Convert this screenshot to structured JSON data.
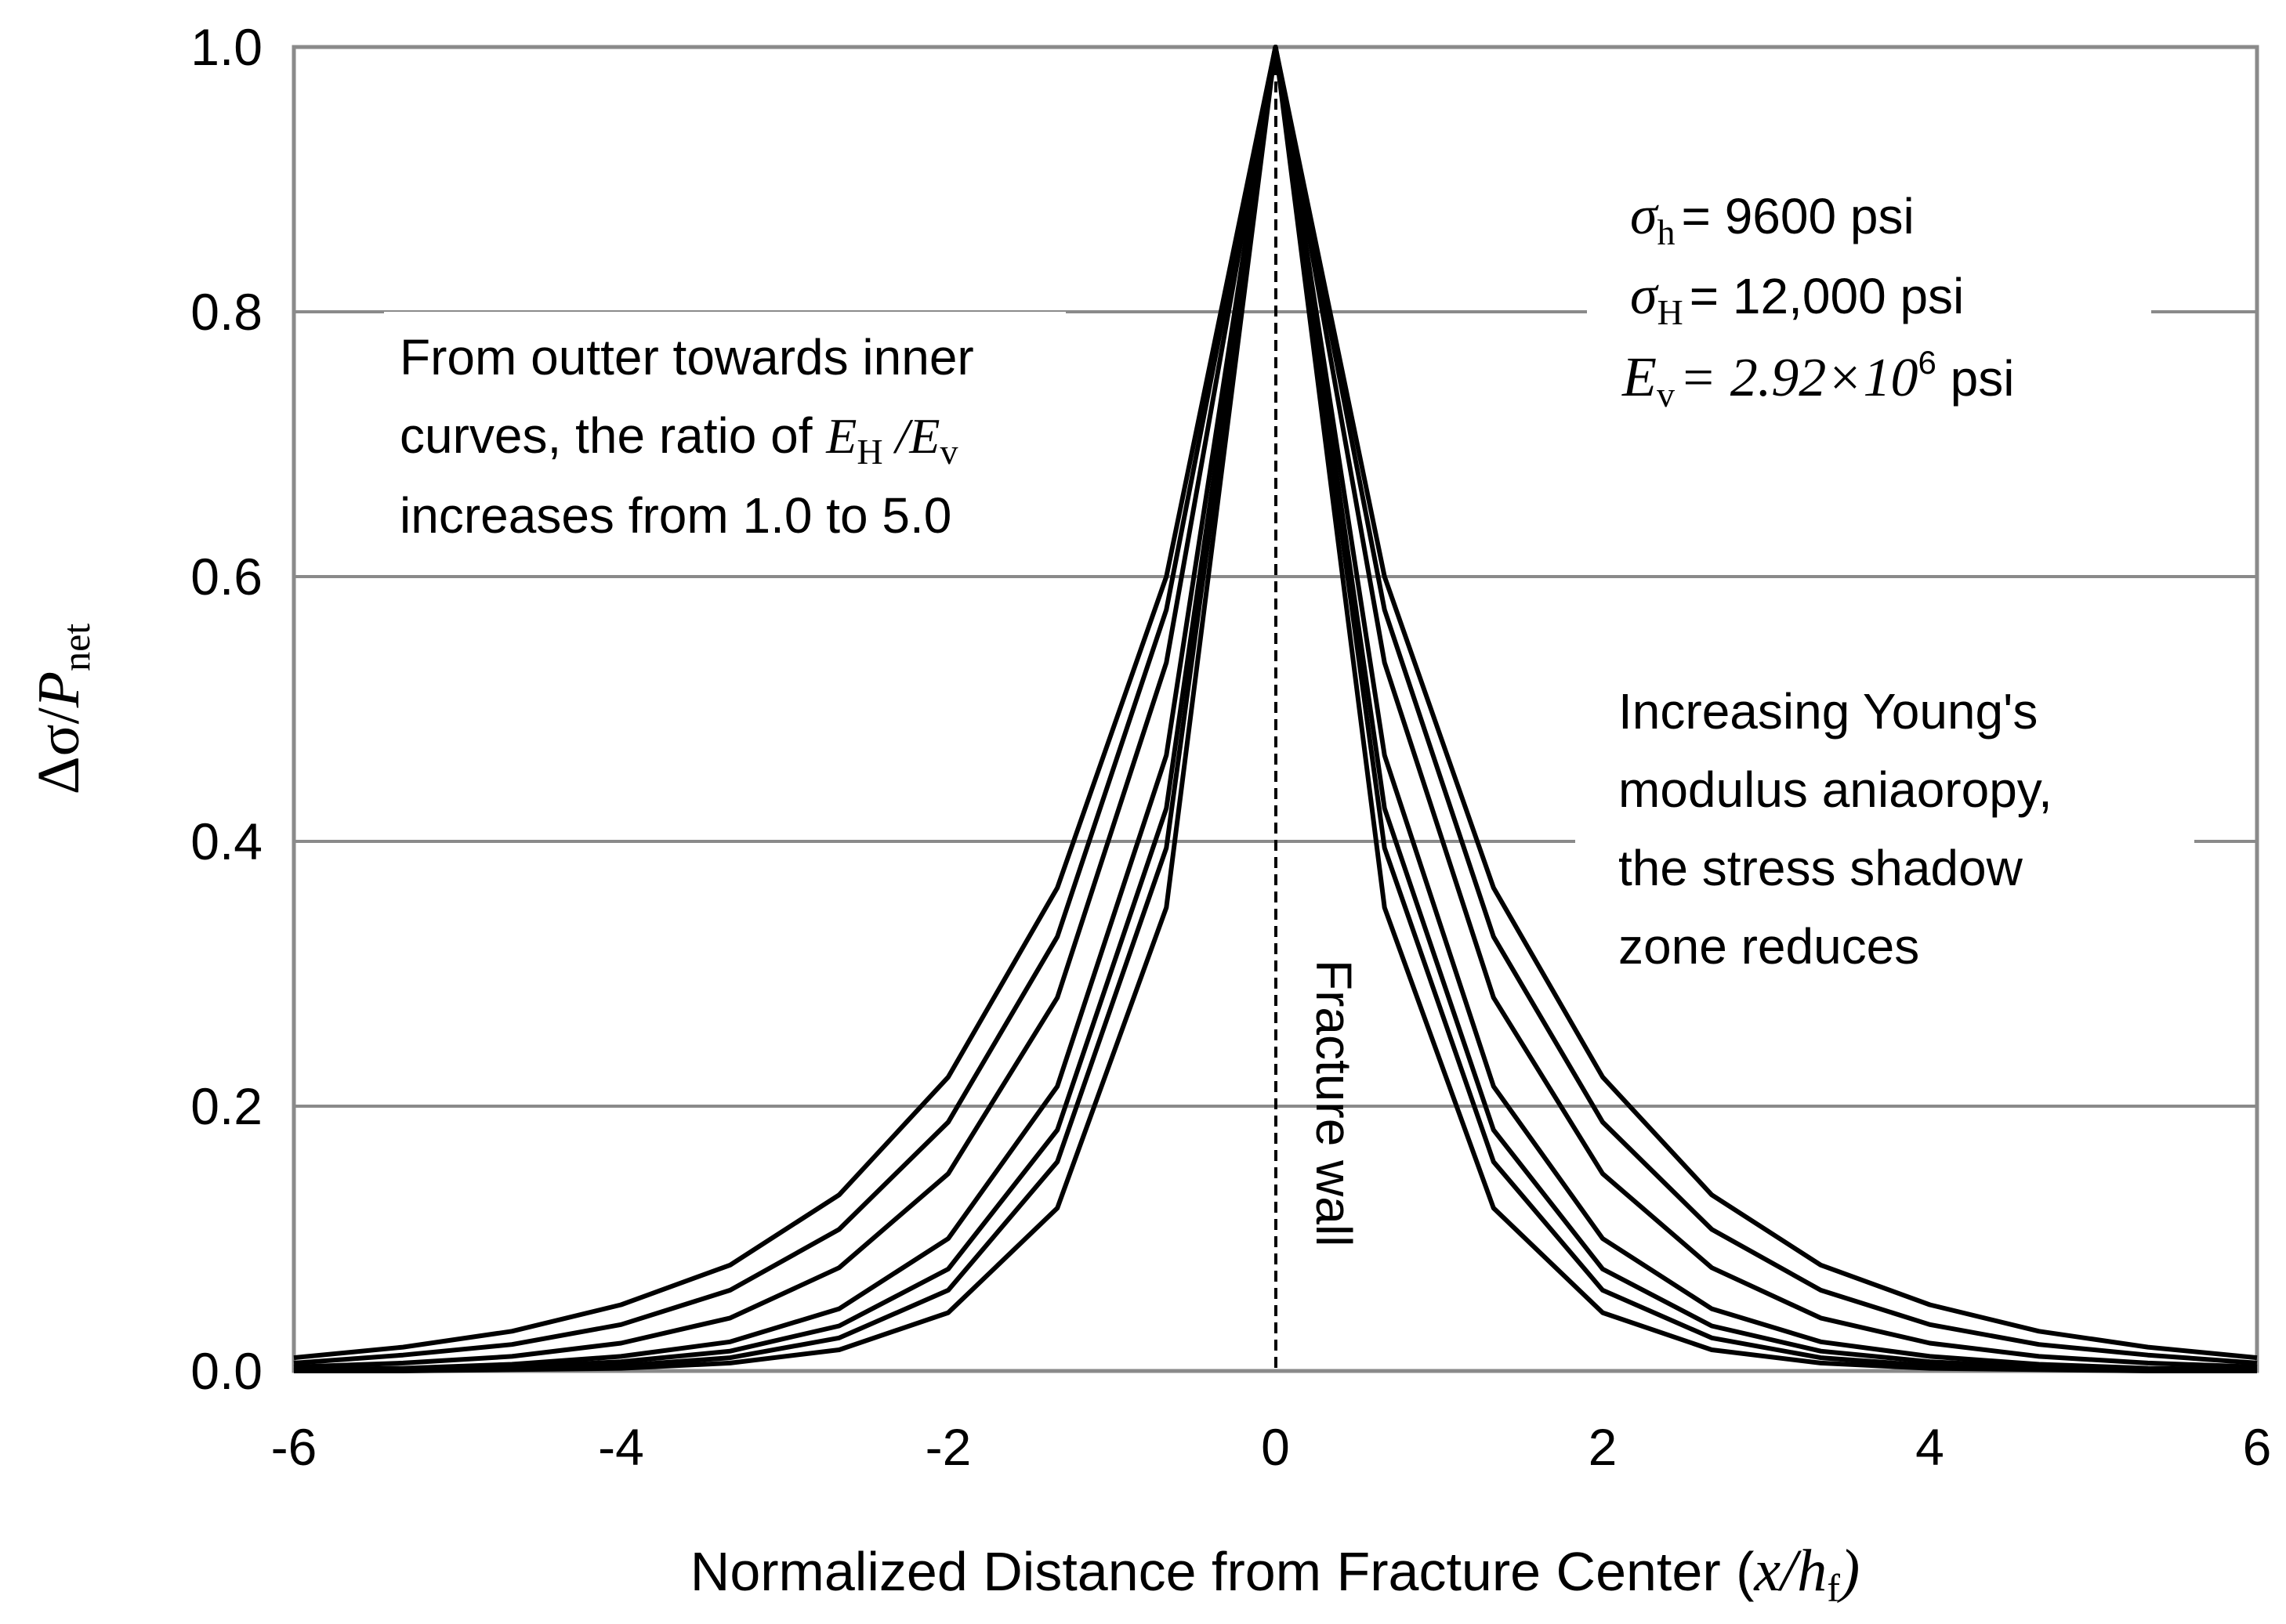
{
  "chart_data": {
    "type": "line",
    "title": "",
    "xlabel": {
      "main": "Normalized Distance from Fracture Center (",
      "var": "x",
      "slash": "/",
      "var2": "h",
      "sub2": "f",
      "close": ")"
    },
    "ylabel": {
      "main": "Δσ/",
      "var": "P",
      "sub": "net"
    },
    "xlim": [
      -6,
      6
    ],
    "ylim": [
      0,
      1
    ],
    "xticks": [
      "-6",
      "-4",
      "-2",
      "0",
      "2",
      "4",
      "6"
    ],
    "yticks": [
      "0.0",
      "0.2",
      "0.4",
      "0.6",
      "0.8",
      "1.0"
    ],
    "grid": "horizontal",
    "x": [
      -6,
      -5.333,
      -4.667,
      -4,
      -3.333,
      -2.667,
      -2,
      -1.333,
      -0.667,
      0,
      0.667,
      1.333,
      2,
      2.667,
      3.333,
      4,
      4.667,
      5.333,
      6
    ],
    "series": [
      {
        "values": [
          0.01,
          0.018,
          0.03,
          0.05,
          0.08,
          0.133,
          0.222,
          0.365,
          0.6,
          1.0,
          0.6,
          0.365,
          0.222,
          0.133,
          0.08,
          0.05,
          0.03,
          0.018,
          0.01
        ]
      },
      {
        "values": [
          0.006,
          0.012,
          0.02,
          0.035,
          0.061,
          0.107,
          0.188,
          0.328,
          0.575,
          1.0,
          0.575,
          0.328,
          0.188,
          0.107,
          0.061,
          0.035,
          0.02,
          0.012,
          0.006
        ]
      },
      {
        "values": [
          0.003,
          0.006,
          0.011,
          0.021,
          0.04,
          0.078,
          0.149,
          0.282,
          0.535,
          1.0,
          0.535,
          0.282,
          0.149,
          0.078,
          0.04,
          0.021,
          0.011,
          0.006,
          0.003
        ]
      },
      {
        "values": [
          0.001,
          0.002,
          0.005,
          0.011,
          0.022,
          0.047,
          0.1,
          0.215,
          0.465,
          1.0,
          0.465,
          0.215,
          0.1,
          0.047,
          0.022,
          0.011,
          0.005,
          0.002,
          0.001
        ]
      },
      {
        "values": [
          0.0,
          0.001,
          0.003,
          0.007,
          0.015,
          0.034,
          0.077,
          0.182,
          0.425,
          1.0,
          0.425,
          0.182,
          0.077,
          0.034,
          0.015,
          0.007,
          0.003,
          0.001,
          0.0
        ]
      },
      {
        "values": [
          0.0,
          0.001,
          0.002,
          0.004,
          0.01,
          0.025,
          0.061,
          0.158,
          0.395,
          1.0,
          0.395,
          0.158,
          0.061,
          0.025,
          0.01,
          0.004,
          0.002,
          0.001,
          0.0
        ]
      },
      {
        "values": [
          0.0,
          0.0,
          0.001,
          0.002,
          0.006,
          0.016,
          0.044,
          0.123,
          0.35,
          1.0,
          0.35,
          0.123,
          0.044,
          0.016,
          0.006,
          0.002,
          0.001,
          0.0,
          0.0
        ]
      }
    ],
    "fracture_wall_label": "Fracture wall",
    "annotations": {
      "left": {
        "line1": "From outter towards inner",
        "line2_pre": "curves, the ratio of ",
        "E": "E",
        "sub_H": "H",
        "slash": " /",
        "sub_v": "v",
        "line3": "increases from 1.0 to 5.0"
      },
      "params": {
        "sigma": "σ",
        "sub_h": "h",
        "val_h": "= 9600 psi",
        "sub_H": "H",
        "val_H": "= 12,000 psi",
        "E": "E",
        "sub_v": "v",
        "val_E_pre": "= 2.92×10",
        "val_E_sup": "6",
        "val_E_post": " psi"
      },
      "right": {
        "line1": "Increasing Young's",
        "line2": "modulus aniaoropy,",
        "line3": "the stress shadow",
        "line4": "zone reduces"
      }
    }
  }
}
